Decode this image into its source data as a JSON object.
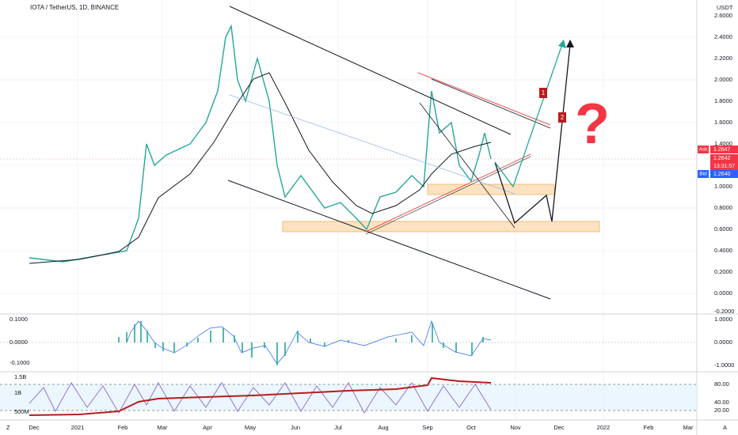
{
  "header": {
    "title": "IOTA / TetherUS, 1D, BINANCE",
    "currency": "USDT"
  },
  "price_axis": [
    "2.6000",
    "2.4000",
    "2.2000",
    "2.0000",
    "1.8000",
    "1.6000",
    "1.4000",
    "1.0000",
    "0.8000",
    "0.6000",
    "0.4000",
    "0.2000",
    "0.0000",
    "-0.2000"
  ],
  "quote": {
    "ask_label": "Ask",
    "ask": "1.2647",
    "last": "1.2642",
    "countdown": "13:31:57",
    "bid_label": "Bid",
    "bid": "1.2640"
  },
  "oscillator_axis_left": [
    "0.1000",
    "0.0000",
    "-0.1000"
  ],
  "oscillator_axis_right": [
    "1.0000",
    "0.0000",
    "-1.0000"
  ],
  "volume_axis": [
    "1.5B",
    "1B",
    "500M"
  ],
  "rsi_axis": [
    "80.00",
    "40.00",
    "20.00"
  ],
  "time_axis": [
    "Dec",
    "2021",
    "Feb",
    "Mar",
    "Apr",
    "May",
    "Jun",
    "Jul",
    "Aug",
    "Sep",
    "Oct",
    "Nov",
    "Dec",
    "2022",
    "Feb",
    "Mar"
  ],
  "annotations": [
    "1",
    "2",
    "?"
  ],
  "corner_left": "Z",
  "corner_right": "A"
}
